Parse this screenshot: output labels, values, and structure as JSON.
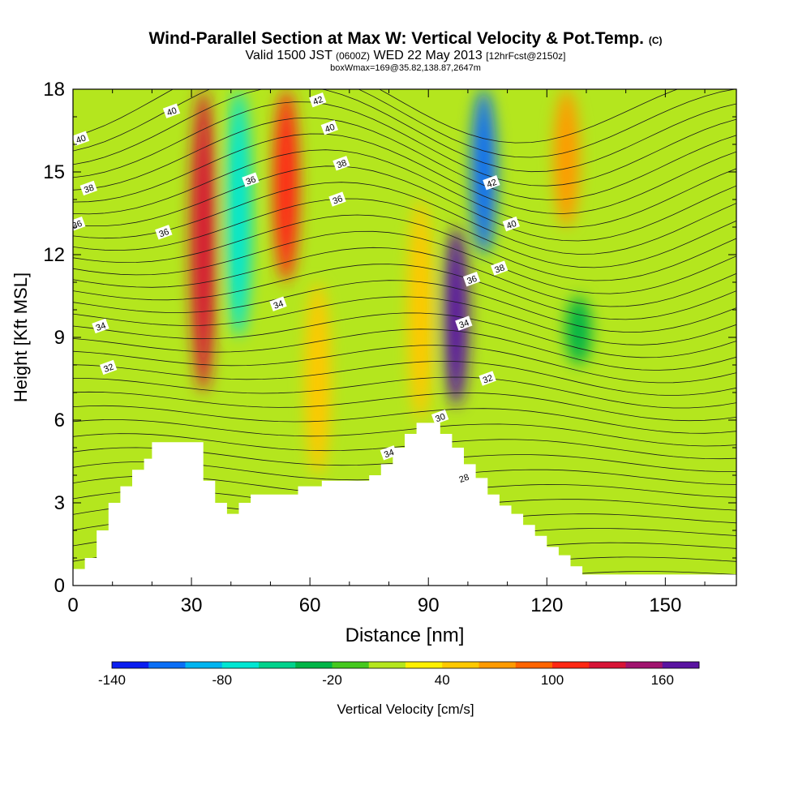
{
  "header": {
    "title": "Wind-Parallel Section at Max W: Vertical Velocity & Pot.Temp.",
    "title_mark": "(C)",
    "valid_prefix": "Valid 1500 JST",
    "valid_utc": "(0600Z)",
    "valid_date": "WED 22 May 2013",
    "forecast": "[12hrFcst@2150z]",
    "box_info": "boxWmax=169@35.82,138.87,2647m"
  },
  "chart_data": {
    "type": "heatmap",
    "xlabel": "Distance [nm]",
    "ylabel": "Height [Kft MSL]",
    "xlim": [
      0,
      168
    ],
    "ylim": [
      0,
      18
    ],
    "x_ticks": [
      0,
      30,
      60,
      90,
      120,
      150
    ],
    "y_ticks": [
      0,
      3,
      6,
      9,
      12,
      15,
      18
    ],
    "colorbar": {
      "label": "Vertical Velocity [cm/s]",
      "range": [
        -140,
        180
      ],
      "step": 20,
      "tick_labels": [
        "-140",
        "-80",
        "-20",
        "40",
        "100",
        "160"
      ],
      "tick_values": [
        -140,
        -80,
        -20,
        40,
        100,
        160
      ],
      "colors": [
        "#0a1ef0",
        "#0a6ef5",
        "#00b4f0",
        "#00e6d2",
        "#00d28c",
        "#00b446",
        "#44c81e",
        "#b4e61e",
        "#fff000",
        "#ffc800",
        "#ff9a00",
        "#ff6400",
        "#ff2814",
        "#d71436",
        "#a0146e",
        "#5a14a0"
      ]
    },
    "velocity_features": [
      {
        "x": 33,
        "y_from": 7,
        "y_to": 18,
        "peak_cm_s": 120
      },
      {
        "x": 42,
        "y_from": 9,
        "y_to": 18,
        "peak_cm_s": -70
      },
      {
        "x": 54,
        "y_from": 11,
        "y_to": 18,
        "peak_cm_s": 100
      },
      {
        "x": 62,
        "y_from": 4,
        "y_to": 11,
        "peak_cm_s": 45
      },
      {
        "x": 88,
        "y_from": 6,
        "y_to": 14,
        "peak_cm_s": 45
      },
      {
        "x": 97,
        "y_from": 6.5,
        "y_to": 13,
        "peak_cm_s": 169
      },
      {
        "x": 104,
        "y_from": 12,
        "y_to": 18,
        "peak_cm_s": -120
      },
      {
        "x": 125,
        "y_from": 13,
        "y_to": 18,
        "peak_cm_s": 75
      },
      {
        "x": 128,
        "y_from": 8,
        "y_to": 10.5,
        "peak_cm_s": -30
      }
    ],
    "terrain_kft": {
      "x": [
        0,
        3,
        6,
        9,
        12,
        15,
        18,
        20,
        23,
        30,
        33,
        36,
        39,
        42,
        45,
        48,
        55,
        57,
        60,
        63,
        70,
        75,
        78,
        81,
        84,
        87,
        90,
        93,
        96,
        99,
        102,
        105,
        108,
        111,
        114,
        117,
        120,
        123,
        126,
        129,
        168
      ],
      "y": [
        0.6,
        1.0,
        2.0,
        3.0,
        3.6,
        4.2,
        4.6,
        5.2,
        5.2,
        5.2,
        3.8,
        3.0,
        2.6,
        3.0,
        3.3,
        3.3,
        3.3,
        3.6,
        3.6,
        3.8,
        3.8,
        4.0,
        4.4,
        5.0,
        5.5,
        5.9,
        5.9,
        5.5,
        5.0,
        4.4,
        3.9,
        3.3,
        2.9,
        2.6,
        2.2,
        1.8,
        1.4,
        1.1,
        0.7,
        0.4,
        0.3
      ]
    },
    "theta_contour_labels": [
      {
        "text": "40",
        "x": 2,
        "y": 16.2
      },
      {
        "text": "38",
        "x": 4,
        "y": 14.4
      },
      {
        "text": "36",
        "x": 1,
        "y": 13.1
      },
      {
        "text": "34",
        "x": 7,
        "y": 9.4
      },
      {
        "text": "32",
        "x": 9,
        "y": 7.9
      },
      {
        "text": "40",
        "x": 25,
        "y": 17.2
      },
      {
        "text": "36",
        "x": 23,
        "y": 12.8
      },
      {
        "text": "36",
        "x": 45,
        "y": 14.7
      },
      {
        "text": "34",
        "x": 52,
        "y": 10.2
      },
      {
        "text": "42",
        "x": 62,
        "y": 17.6
      },
      {
        "text": "40",
        "x": 65,
        "y": 16.6
      },
      {
        "text": "38",
        "x": 68,
        "y": 15.3
      },
      {
        "text": "36",
        "x": 67,
        "y": 14.0
      },
      {
        "text": "42",
        "x": 106,
        "y": 14.6
      },
      {
        "text": "40",
        "x": 111,
        "y": 13.1
      },
      {
        "text": "38",
        "x": 108,
        "y": 11.5
      },
      {
        "text": "36",
        "x": 101,
        "y": 11.1
      },
      {
        "text": "34",
        "x": 99,
        "y": 9.5
      },
      {
        "text": "32",
        "x": 105,
        "y": 7.5
      },
      {
        "text": "30",
        "x": 93,
        "y": 6.1
      },
      {
        "text": "34",
        "x": 80,
        "y": 4.8
      },
      {
        "text": "28",
        "x": 99,
        "y": 3.9
      }
    ]
  }
}
